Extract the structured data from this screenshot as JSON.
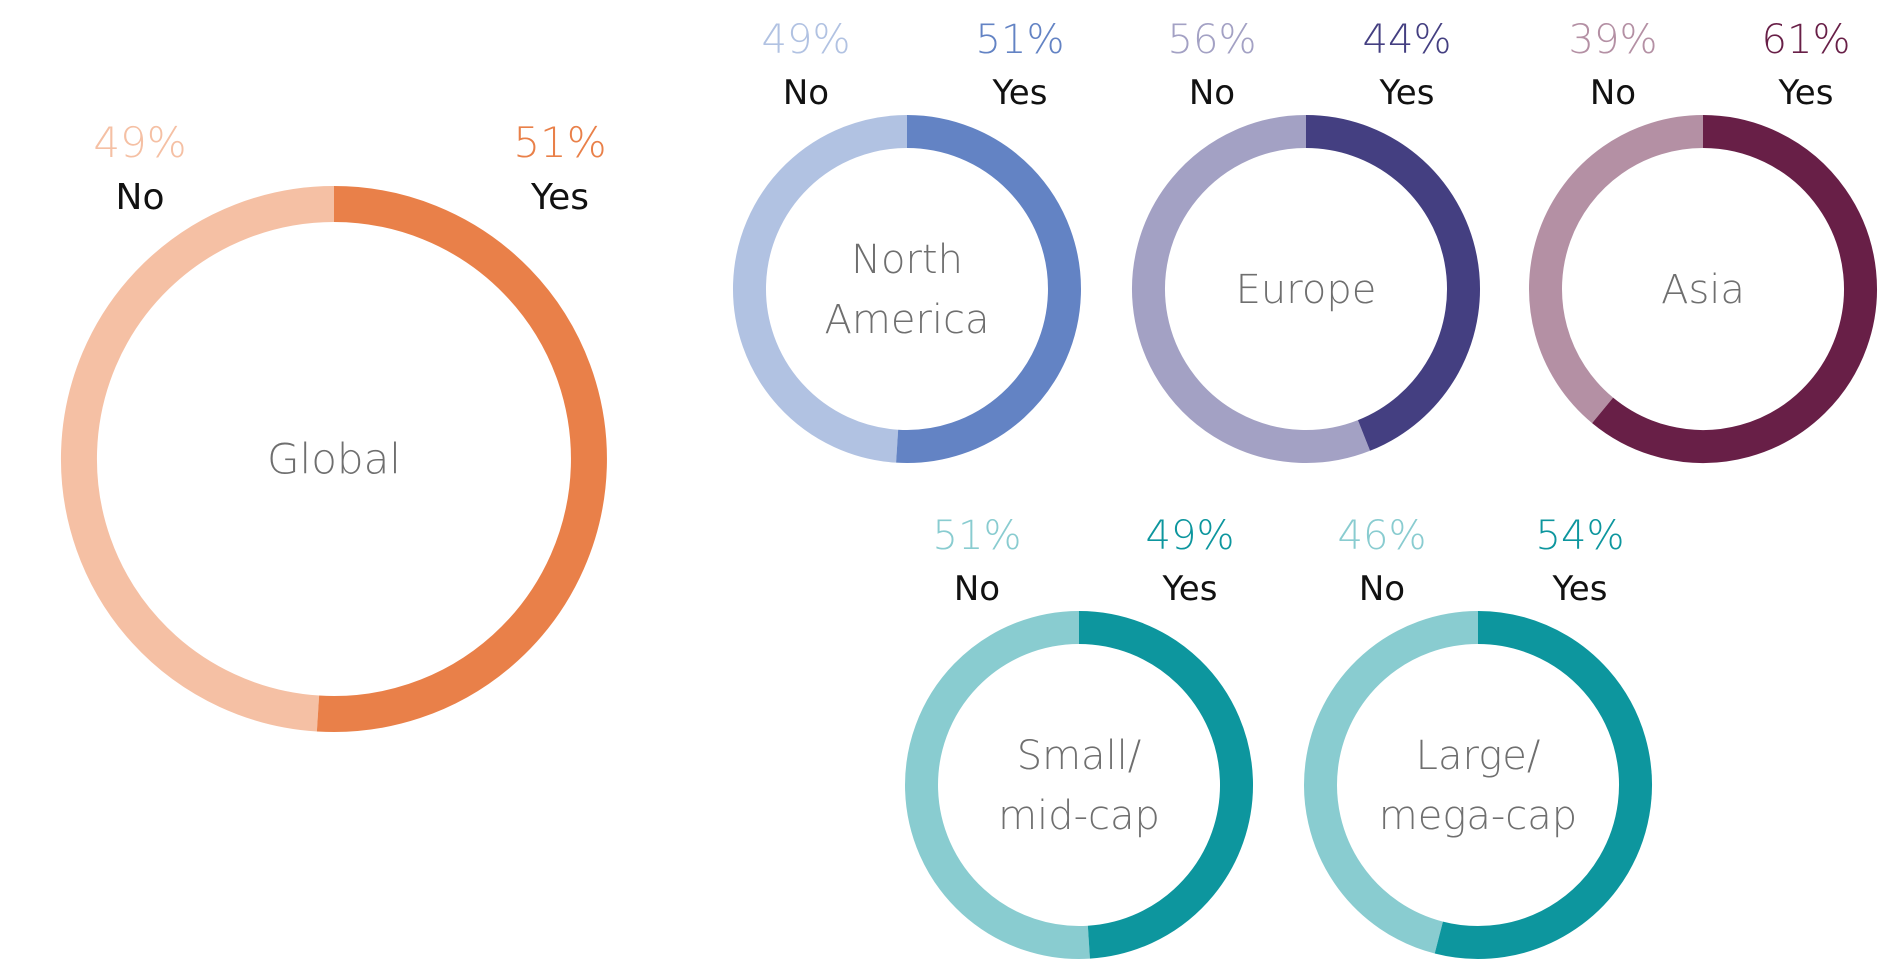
{
  "chart_data": [
    {
      "type": "pie",
      "variant": "donut",
      "title": "Global",
      "categories": [
        "No",
        "Yes"
      ],
      "values": [
        49,
        51
      ],
      "labels": [
        "49%",
        "51%"
      ],
      "colors": [
        "#F5C0A4",
        "#E98049"
      ]
    },
    {
      "type": "pie",
      "variant": "donut",
      "title": "North America",
      "title_lines": [
        "North",
        "America"
      ],
      "categories": [
        "No",
        "Yes"
      ],
      "values": [
        49,
        51
      ],
      "labels": [
        "49%",
        "51%"
      ],
      "colors": [
        "#B1C2E2",
        "#6383C4"
      ]
    },
    {
      "type": "pie",
      "variant": "donut",
      "title": "Europe",
      "categories": [
        "No",
        "Yes"
      ],
      "values": [
        56,
        44
      ],
      "labels": [
        "56%",
        "44%"
      ],
      "colors": [
        "#A3A1C4",
        "#443F81"
      ]
    },
    {
      "type": "pie",
      "variant": "donut",
      "title": "Asia",
      "categories": [
        "No",
        "Yes"
      ],
      "values": [
        39,
        61
      ],
      "labels": [
        "39%",
        "61%"
      ],
      "colors": [
        "#B490A4",
        "#681F47"
      ]
    },
    {
      "type": "pie",
      "variant": "donut",
      "title": "Small/ mid-cap",
      "title_lines": [
        "Small/",
        "mid-cap"
      ],
      "categories": [
        "No",
        "Yes"
      ],
      "values": [
        51,
        49
      ],
      "labels": [
        "51%",
        "49%"
      ],
      "colors": [
        "#89CCD0",
        "#0D969E"
      ]
    },
    {
      "type": "pie",
      "variant": "donut",
      "title": "Large/ mega-cap",
      "title_lines": [
        "Large/",
        "mega-cap"
      ],
      "categories": [
        "No",
        "Yes"
      ],
      "values": [
        46,
        54
      ],
      "labels": [
        "46%",
        "54%"
      ],
      "colors": [
        "#89CCD0",
        "#0D969E"
      ]
    }
  ]
}
